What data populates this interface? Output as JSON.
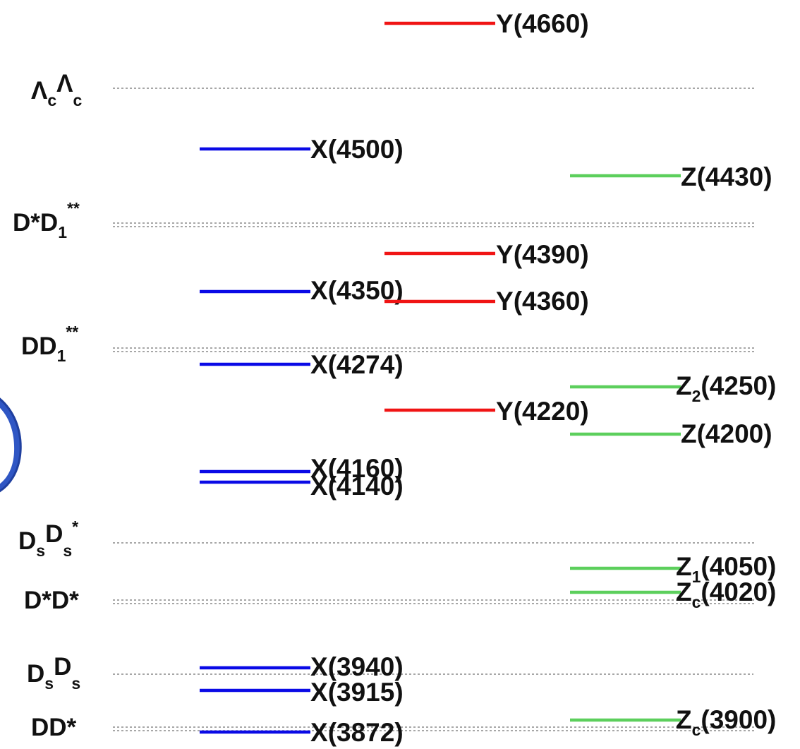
{
  "colors": {
    "X": "#0a0ae6",
    "Y": "#f01414",
    "Z": "#5ccf5c",
    "threshold": "#8a8a8a",
    "arc": "#1f3f9f"
  },
  "thresholds": [
    {
      "id": "lclc",
      "base1": "Λ",
      "sub1": "c",
      "base2": "Λ",
      "sub2": "c",
      "sup2": ""
    },
    {
      "id": "dsd1",
      "base1": "D*D",
      "sub1": "1",
      "base2": "",
      "sub2": "",
      "sup2": "**"
    },
    {
      "id": "dd1",
      "base1": "DD",
      "sub1": "1",
      "base2": "",
      "sub2": "",
      "sup2": "**"
    },
    {
      "id": "dsdss",
      "base1": "D",
      "sub1": "s",
      "base2": "D",
      "sub2": "s",
      "sup2": "*"
    },
    {
      "id": "dsds_star",
      "base1": "D*D*",
      "sub1": "",
      "base2": "",
      "sub2": "",
      "sup2": ""
    },
    {
      "id": "dsds",
      "base1": "D",
      "sub1": "s",
      "base2": "D",
      "sub2": "s",
      "sup2": ""
    },
    {
      "id": "ddstar",
      "base1": "DD*",
      "sub1": "",
      "base2": "",
      "sub2": "",
      "sup2": ""
    }
  ],
  "states": [
    {
      "family": "Y",
      "base": "Y",
      "sub": "",
      "mass": "(4660)"
    },
    {
      "family": "X",
      "base": "X",
      "sub": "",
      "mass": "(4500)"
    },
    {
      "family": "Z",
      "base": "Z",
      "sub": "",
      "mass": "(4430)"
    },
    {
      "family": "Y",
      "base": "Y",
      "sub": "",
      "mass": "(4390)"
    },
    {
      "family": "X",
      "base": "X",
      "sub": "",
      "mass": "(4350)"
    },
    {
      "family": "Y",
      "base": "Y",
      "sub": "",
      "mass": "(4360)"
    },
    {
      "family": "X",
      "base": "X",
      "sub": "",
      "mass": "(4274)"
    },
    {
      "family": "Z",
      "base": "Z",
      "sub": "2",
      "mass": "(4250)"
    },
    {
      "family": "Y",
      "base": "Y",
      "sub": "",
      "mass": "(4220)"
    },
    {
      "family": "Z",
      "base": "Z",
      "sub": "",
      "mass": "(4200)"
    },
    {
      "family": "X",
      "base": "X",
      "sub": "",
      "mass": "(4160)"
    },
    {
      "family": "X",
      "base": "X",
      "sub": "",
      "mass": "(4140)"
    },
    {
      "family": "Z",
      "base": "Z",
      "sub": "1",
      "mass": "(4050)"
    },
    {
      "family": "Z",
      "base": "Z",
      "sub": "c",
      "mass": "(4020)"
    },
    {
      "family": "X",
      "base": "X",
      "sub": "",
      "mass": "(3940)"
    },
    {
      "family": "X",
      "base": "X",
      "sub": "",
      "mass": "(3915)"
    },
    {
      "family": "Z",
      "base": "Z",
      "sub": "c",
      "mass": "(3900)"
    },
    {
      "family": "X",
      "base": "X",
      "sub": "",
      "mass": "(3872)"
    }
  ]
}
